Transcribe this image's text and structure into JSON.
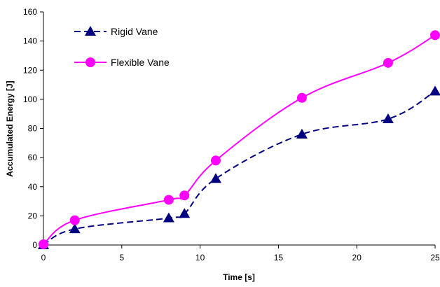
{
  "chart_data": {
    "type": "line",
    "title": "",
    "xlabel": "Time [s]",
    "ylabel": "Accumulated Energy [J]",
    "xlim": [
      0,
      25
    ],
    "ylim": [
      0,
      160
    ],
    "x_ticks": [
      0,
      5,
      10,
      15,
      20,
      25
    ],
    "y_ticks": [
      0,
      20,
      40,
      60,
      80,
      100,
      120,
      140,
      160
    ],
    "grid": false,
    "legend_position": "top-left",
    "series": [
      {
        "name": "Rigid Vane",
        "color": "#000080",
        "line_style": "dashed",
        "marker": "triangle",
        "x": [
          0,
          2,
          8,
          9,
          11,
          16.5,
          22,
          25
        ],
        "y": [
          0,
          11,
          18.5,
          21.5,
          45.5,
          76,
          86.5,
          105.5
        ]
      },
      {
        "name": "Flexible Vane",
        "color": "#ff00ff",
        "line_style": "solid",
        "marker": "circle",
        "x": [
          0,
          2,
          8,
          9,
          11,
          16.5,
          22,
          25
        ],
        "y": [
          0.5,
          17,
          31,
          34,
          58,
          101,
          125,
          144
        ]
      }
    ]
  }
}
